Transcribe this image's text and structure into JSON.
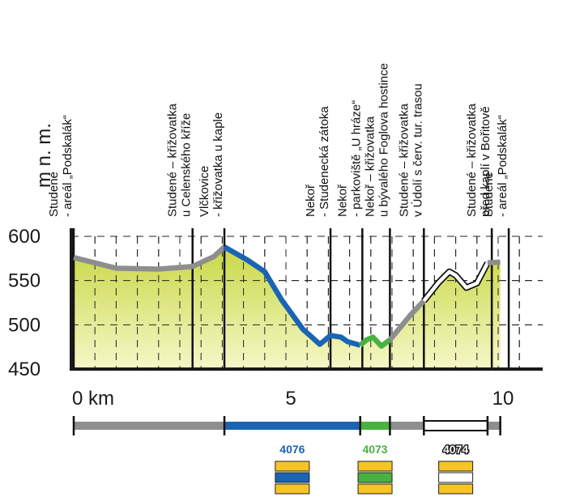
{
  "chart_data": {
    "type": "area",
    "ylabel": "m n. m.",
    "xlim": [
      0,
      10.8
    ],
    "ylim": [
      450,
      600
    ],
    "x_ticks": [
      {
        "value": 0,
        "label": "0 km"
      },
      {
        "value": 5,
        "label": "5"
      },
      {
        "value": 10,
        "label": "10"
      }
    ],
    "y_ticks": [
      {
        "value": 600,
        "label": "600"
      },
      {
        "value": 550,
        "label": "550"
      },
      {
        "value": 500,
        "label": "500"
      },
      {
        "value": 450,
        "label": "450"
      }
    ],
    "grid": true,
    "profile": [
      [
        0.0,
        576
      ],
      [
        1.0,
        564
      ],
      [
        2.0,
        563
      ],
      [
        2.8,
        566
      ],
      [
        3.3,
        577
      ],
      [
        3.55,
        588
      ],
      [
        4.1,
        573
      ],
      [
        4.5,
        560
      ],
      [
        4.9,
        528
      ],
      [
        5.4,
        495
      ],
      [
        5.8,
        478
      ],
      [
        6.05,
        488
      ],
      [
        6.3,
        486
      ],
      [
        6.45,
        481
      ],
      [
        6.75,
        477
      ],
      [
        6.9,
        483
      ],
      [
        7.05,
        486
      ],
      [
        7.25,
        476
      ],
      [
        7.45,
        483
      ],
      [
        7.95,
        512
      ],
      [
        8.25,
        527
      ],
      [
        8.6,
        548
      ],
      [
        8.85,
        560
      ],
      [
        9.0,
        556
      ],
      [
        9.25,
        542
      ],
      [
        9.5,
        547
      ],
      [
        9.75,
        570
      ],
      [
        10.05,
        571
      ]
    ],
    "segments": [
      {
        "from": 0.0,
        "to": 3.55,
        "color": "#8e8e8e"
      },
      {
        "from": 3.55,
        "to": 6.75,
        "color": "#1a64b4"
      },
      {
        "from": 6.75,
        "to": 7.45,
        "color": "#47b240"
      },
      {
        "from": 7.45,
        "to": 8.25,
        "color": "#8e8e8e"
      },
      {
        "from": 8.25,
        "to": 9.75,
        "color": "#ffffff"
      },
      {
        "from": 9.75,
        "to": 10.05,
        "color": "#8e8e8e"
      }
    ],
    "stations": [
      {
        "x": 0.0,
        "lines": [
          "Studené",
          " - areál „Podskalák“"
        ]
      },
      {
        "x": 2.8,
        "lines": [
          "Studené – křižovatka",
          "u Celenského kříže"
        ]
      },
      {
        "x": 3.55,
        "lines": [
          "Vlčkovice",
          " - křižovatka u kaple"
        ]
      },
      {
        "x": 6.05,
        "lines": [
          "Nekoř",
          " - Studenecká zátoka"
        ]
      },
      {
        "x": 6.8,
        "lines": [
          "Nekoř",
          " - parkoviště „U hráze“"
        ]
      },
      {
        "x": 7.45,
        "lines": [
          "Nekoř – křižovatka",
          "u bývalého Foglova hostince"
        ]
      },
      {
        "x": 8.25,
        "lines": [
          "Studené – křižovatka",
          "v Údolí s červ. tur. trasou"
        ]
      },
      {
        "x": 9.85,
        "lines": [
          "Studené – křižovatka",
          "před kaplí v Bořitově"
        ]
      },
      {
        "x": 10.25,
        "lines": [
          "Studené",
          " - areál „Podskalák“"
        ]
      }
    ],
    "route_bar": [
      {
        "from": 0.0,
        "to": 3.55,
        "color": "#8e8e8e",
        "label": ""
      },
      {
        "from": 3.55,
        "to": 6.75,
        "color": "#1a64b4",
        "label": "4076"
      },
      {
        "from": 6.75,
        "to": 7.45,
        "color": "#47b240",
        "label": "4073"
      },
      {
        "from": 7.45,
        "to": 8.25,
        "color": "#8e8e8e",
        "label": ""
      },
      {
        "from": 8.25,
        "to": 9.75,
        "color": "#ffffff",
        "label": "4074"
      },
      {
        "from": 9.75,
        "to": 10.05,
        "color": "#8e8e8e",
        "label": ""
      }
    ],
    "colors": {
      "fill_top": "#c8d845",
      "fill_bottom": "#f6f7c8",
      "grey": "#8e8e8e",
      "blue": "#1a64b4",
      "green": "#47b240",
      "white": "#ffffff",
      "marker_yellow": "#f7c425",
      "axis": "#1a1a1a"
    }
  }
}
